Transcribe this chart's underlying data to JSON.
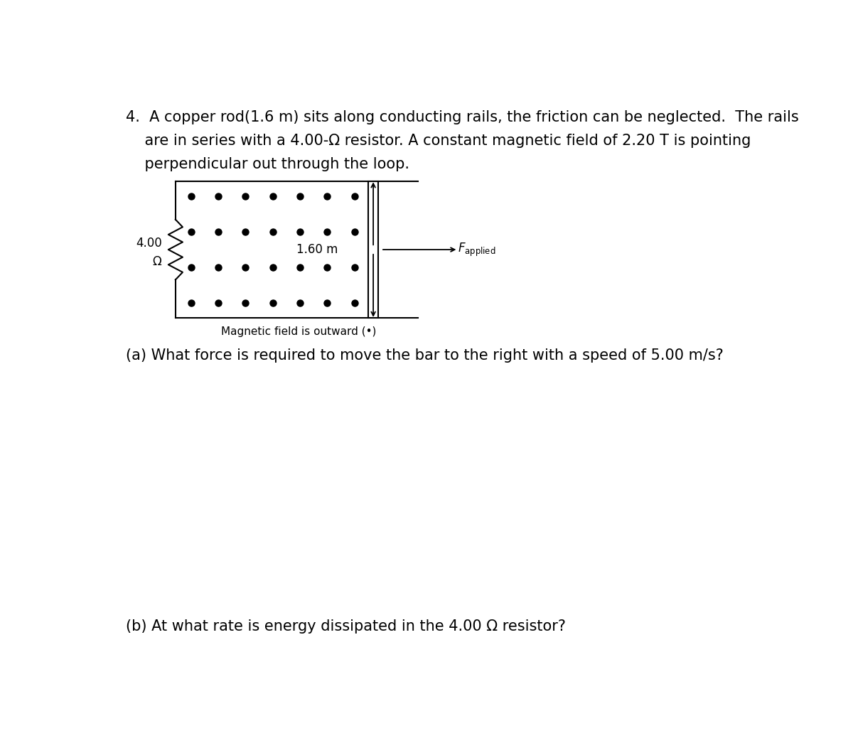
{
  "bg_color": "#ffffff",
  "title_line1": "4.  A copper rod(1.6 m) sits along conducting rails, the friction can be neglected.  The rails",
  "title_line2": "    are in series with a 4.00-Ω resistor. A constant magnetic field of 2.20 T is pointing",
  "title_line3": "    perpendicular out through the loop.",
  "question_a": "(a) What force is required to move the bar to the right with a speed of 5.00 m/s?",
  "question_b": "(b) At what rate is energy dissipated in the 4.00 Ω resistor?",
  "mag_field_label": "Magnetic field is outward (•)",
  "resistor_label_line1": "4.00",
  "resistor_label_line2": "Ω",
  "length_label": "1.60 m",
  "dot_rows": 4,
  "dot_cols": 7,
  "dot_color": "#000000",
  "line_color": "#000000",
  "text_color": "#000000",
  "font_size_body": 15,
  "font_size_label": 12,
  "font_size_small": 11
}
